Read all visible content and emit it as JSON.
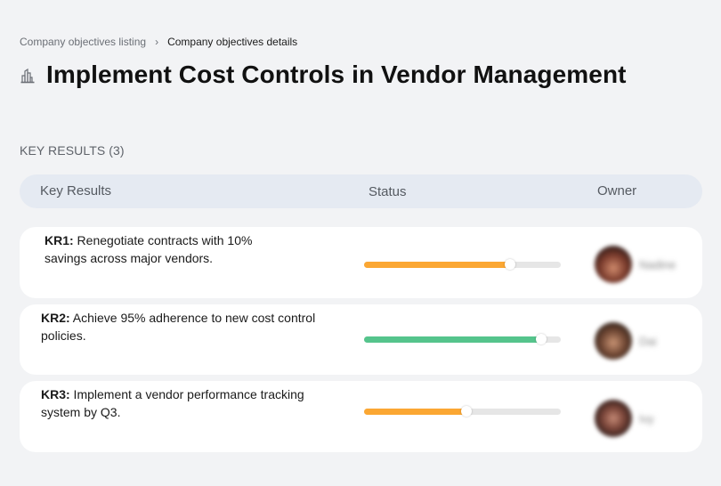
{
  "breadcrumb": {
    "items": [
      {
        "label": "Company objectives listing"
      },
      {
        "label": "Company objectives details"
      }
    ],
    "separator": "›"
  },
  "header": {
    "icon": "buildings-icon",
    "title": "Implement Cost Controls in Vendor Management"
  },
  "key_results": {
    "section_label": "KEY RESULTS (3)",
    "columns": [
      "Key Results",
      "Status",
      "Owner"
    ],
    "rows": [
      {
        "code": "KR1:",
        "text": " Renegotiate contracts with 10% savings across major vendors.",
        "progress": 74,
        "progress_color": "#fba733",
        "owner": "Nadine"
      },
      {
        "code": "KR2:",
        "text": " Achieve 95% adherence to new cost control policies.",
        "progress": 90,
        "progress_color": "#55c48c",
        "owner": "Dai"
      },
      {
        "code": "KR3:",
        "text": " Implement a vendor performance tracking system by Q3.",
        "progress": 52,
        "progress_color": "#fba733",
        "owner": "Ivy"
      }
    ]
  },
  "colors": {
    "background": "#f2f3f5",
    "header_bar": "#e5eaf2",
    "card": "#ffffff",
    "track": "#e6e6e6",
    "status_warning": "#fba733",
    "status_good": "#55c48c"
  }
}
